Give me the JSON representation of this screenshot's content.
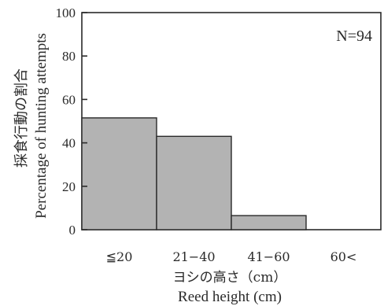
{
  "chart_data": {
    "type": "bar",
    "categories": [
      "≦20",
      "21−40",
      "41−60",
      "60<"
    ],
    "values": [
      51.5,
      43,
      6.5,
      0
    ],
    "ylim": [
      0,
      100
    ],
    "yticks": [
      0,
      20,
      40,
      60,
      80,
      100
    ],
    "ylabel_jp": "採食行動の割合",
    "ylabel_en": "Percentage of hunting attempts",
    "xlabel_jp": "ヨシの高さ（cm）",
    "xlabel_en": "Reed height (cm)",
    "annotation": "N=94",
    "bar_color": "#b3b3b3",
    "grid": false,
    "legend": "none"
  }
}
